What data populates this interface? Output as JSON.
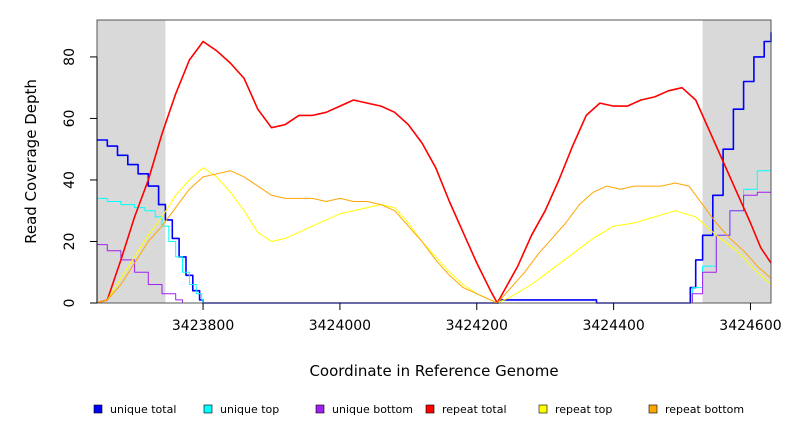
{
  "chart_data": {
    "type": "line",
    "title": "",
    "xlabel": "Coordinate in Reference Genome",
    "ylabel": "Read Coverage Depth",
    "xlim": [
      3423645,
      3424630
    ],
    "ylim": [
      0,
      92
    ],
    "x_ticks": [
      3423800,
      3424000,
      3424200,
      3424400,
      3424600
    ],
    "y_ticks": [
      0,
      20,
      40,
      60,
      80
    ],
    "x_tick_labels": [
      "3423800",
      "3424000",
      "3424200",
      "3424400",
      "3424600"
    ],
    "y_tick_labels": [
      "0",
      "20",
      "40",
      "60",
      "80"
    ],
    "grid": false,
    "legend_position": "bottom",
    "shaded_regions": [
      {
        "x0": 3423645,
        "x1": 3423745,
        "color": "#d9d9d9"
      },
      {
        "x0": 3424530,
        "x1": 3424630,
        "color": "#d9d9d9"
      }
    ],
    "series": [
      {
        "name": "unique total",
        "color": "#0000ff",
        "step": true,
        "width": 1.6,
        "points": [
          [
            3423645,
            53
          ],
          [
            3423660,
            51
          ],
          [
            3423675,
            48
          ],
          [
            3423690,
            45
          ],
          [
            3423705,
            42
          ],
          [
            3423720,
            38
          ],
          [
            3423735,
            32
          ],
          [
            3423745,
            27
          ],
          [
            3423755,
            21
          ],
          [
            3423765,
            15
          ],
          [
            3423775,
            9
          ],
          [
            3423785,
            4
          ],
          [
            3423795,
            1
          ],
          [
            3423800,
            0
          ],
          [
            3424225,
            0
          ],
          [
            3424232,
            1
          ],
          [
            3424370,
            1
          ],
          [
            3424375,
            0
          ],
          [
            3424505,
            0
          ],
          [
            3424512,
            5
          ],
          [
            3424520,
            14
          ],
          [
            3424530,
            22
          ],
          [
            3424545,
            35
          ],
          [
            3424560,
            50
          ],
          [
            3424575,
            63
          ],
          [
            3424590,
            72
          ],
          [
            3424605,
            80
          ],
          [
            3424620,
            85
          ],
          [
            3424630,
            88
          ]
        ]
      },
      {
        "name": "unique top",
        "color": "#00ffff",
        "step": true,
        "width": 1,
        "points": [
          [
            3423645,
            34
          ],
          [
            3423660,
            33
          ],
          [
            3423680,
            32
          ],
          [
            3423700,
            31
          ],
          [
            3423715,
            30
          ],
          [
            3423730,
            28
          ],
          [
            3423740,
            25
          ],
          [
            3423750,
            20
          ],
          [
            3423760,
            15
          ],
          [
            3423770,
            10
          ],
          [
            3423780,
            6
          ],
          [
            3423790,
            3
          ],
          [
            3423798,
            1
          ],
          [
            3423800,
            0
          ],
          [
            3424505,
            0
          ],
          [
            3424515,
            5
          ],
          [
            3424530,
            12
          ],
          [
            3424550,
            22
          ],
          [
            3424570,
            30
          ],
          [
            3424590,
            37
          ],
          [
            3424610,
            43
          ],
          [
            3424630,
            48
          ]
        ]
      },
      {
        "name": "unique bottom",
        "color": "#a020f0",
        "step": true,
        "width": 1,
        "points": [
          [
            3423645,
            19
          ],
          [
            3423660,
            17
          ],
          [
            3423680,
            14
          ],
          [
            3423700,
            10
          ],
          [
            3423720,
            6
          ],
          [
            3423740,
            3
          ],
          [
            3423760,
            1
          ],
          [
            3423770,
            0
          ],
          [
            3424505,
            0
          ],
          [
            3424515,
            3
          ],
          [
            3424530,
            10
          ],
          [
            3424550,
            22
          ],
          [
            3424570,
            30
          ],
          [
            3424590,
            35
          ],
          [
            3424610,
            36
          ],
          [
            3424630,
            37
          ]
        ]
      },
      {
        "name": "repeat total",
        "color": "#ff0000",
        "step": false,
        "width": 1.6,
        "points": [
          [
            3423645,
            0
          ],
          [
            3423660,
            1
          ],
          [
            3423680,
            14
          ],
          [
            3423700,
            28
          ],
          [
            3423720,
            40
          ],
          [
            3423740,
            55
          ],
          [
            3423760,
            68
          ],
          [
            3423780,
            79
          ],
          [
            3423800,
            85
          ],
          [
            3423820,
            82
          ],
          [
            3423840,
            78
          ],
          [
            3423860,
            73
          ],
          [
            3423880,
            63
          ],
          [
            3423900,
            57
          ],
          [
            3423920,
            58
          ],
          [
            3423940,
            61
          ],
          [
            3423960,
            61
          ],
          [
            3423980,
            62
          ],
          [
            3424000,
            64
          ],
          [
            3424020,
            66
          ],
          [
            3424040,
            65
          ],
          [
            3424060,
            64
          ],
          [
            3424080,
            62
          ],
          [
            3424100,
            58
          ],
          [
            3424120,
            52
          ],
          [
            3424140,
            44
          ],
          [
            3424160,
            33
          ],
          [
            3424180,
            23
          ],
          [
            3424200,
            13
          ],
          [
            3424220,
            4
          ],
          [
            3424230,
            0
          ],
          [
            3424240,
            4
          ],
          [
            3424260,
            12
          ],
          [
            3424280,
            22
          ],
          [
            3424300,
            30
          ],
          [
            3424320,
            40
          ],
          [
            3424340,
            51
          ],
          [
            3424360,
            61
          ],
          [
            3424380,
            65
          ],
          [
            3424400,
            64
          ],
          [
            3424420,
            64
          ],
          [
            3424440,
            66
          ],
          [
            3424460,
            67
          ],
          [
            3424480,
            69
          ],
          [
            3424500,
            70
          ],
          [
            3424520,
            66
          ],
          [
            3424540,
            56
          ],
          [
            3424560,
            46
          ],
          [
            3424580,
            36
          ],
          [
            3424600,
            26
          ],
          [
            3424615,
            18
          ],
          [
            3424630,
            13
          ]
        ]
      },
      {
        "name": "repeat top",
        "color": "#ffff00",
        "step": false,
        "width": 1,
        "points": [
          [
            3423645,
            0
          ],
          [
            3423660,
            1
          ],
          [
            3423680,
            8
          ],
          [
            3423700,
            15
          ],
          [
            3423720,
            22
          ],
          [
            3423740,
            28
          ],
          [
            3423760,
            35
          ],
          [
            3423780,
            40
          ],
          [
            3423800,
            44
          ],
          [
            3423820,
            41
          ],
          [
            3423840,
            36
          ],
          [
            3423860,
            30
          ],
          [
            3423880,
            23
          ],
          [
            3423900,
            20
          ],
          [
            3423920,
            21
          ],
          [
            3423940,
            23
          ],
          [
            3423960,
            25
          ],
          [
            3423980,
            27
          ],
          [
            3424000,
            29
          ],
          [
            3424020,
            30
          ],
          [
            3424040,
            31
          ],
          [
            3424060,
            32
          ],
          [
            3424080,
            31
          ],
          [
            3424100,
            26
          ],
          [
            3424120,
            20
          ],
          [
            3424140,
            15
          ],
          [
            3424160,
            10
          ],
          [
            3424180,
            6
          ],
          [
            3424200,
            3
          ],
          [
            3424220,
            1
          ],
          [
            3424230,
            0
          ],
          [
            3424250,
            2
          ],
          [
            3424280,
            6
          ],
          [
            3424310,
            11
          ],
          [
            3424340,
            16
          ],
          [
            3424370,
            21
          ],
          [
            3424400,
            25
          ],
          [
            3424430,
            26
          ],
          [
            3424460,
            28
          ],
          [
            3424490,
            30
          ],
          [
            3424520,
            28
          ],
          [
            3424550,
            22
          ],
          [
            3424580,
            17
          ],
          [
            3424610,
            10
          ],
          [
            3424630,
            6
          ]
        ]
      },
      {
        "name": "repeat bottom",
        "color": "#ffa500",
        "step": false,
        "width": 1,
        "points": [
          [
            3423645,
            0
          ],
          [
            3423660,
            1
          ],
          [
            3423680,
            6
          ],
          [
            3423700,
            13
          ],
          [
            3423720,
            20
          ],
          [
            3423740,
            25
          ],
          [
            3423760,
            31
          ],
          [
            3423780,
            37
          ],
          [
            3423800,
            41
          ],
          [
            3423820,
            42
          ],
          [
            3423840,
            43
          ],
          [
            3423860,
            41
          ],
          [
            3423880,
            38
          ],
          [
            3423900,
            35
          ],
          [
            3423920,
            34
          ],
          [
            3423940,
            34
          ],
          [
            3423960,
            34
          ],
          [
            3423980,
            33
          ],
          [
            3424000,
            34
          ],
          [
            3424020,
            33
          ],
          [
            3424040,
            33
          ],
          [
            3424060,
            32
          ],
          [
            3424080,
            30
          ],
          [
            3424100,
            25
          ],
          [
            3424120,
            20
          ],
          [
            3424140,
            14
          ],
          [
            3424160,
            9
          ],
          [
            3424180,
            5
          ],
          [
            3424200,
            3
          ],
          [
            3424220,
            1
          ],
          [
            3424230,
            0
          ],
          [
            3424250,
            5
          ],
          [
            3424270,
            10
          ],
          [
            3424290,
            16
          ],
          [
            3424310,
            21
          ],
          [
            3424330,
            26
          ],
          [
            3424350,
            32
          ],
          [
            3424370,
            36
          ],
          [
            3424390,
            38
          ],
          [
            3424410,
            37
          ],
          [
            3424430,
            38
          ],
          [
            3424450,
            38
          ],
          [
            3424470,
            38
          ],
          [
            3424490,
            39
          ],
          [
            3424510,
            38
          ],
          [
            3424530,
            32
          ],
          [
            3424550,
            26
          ],
          [
            3424570,
            21
          ],
          [
            3424590,
            17
          ],
          [
            3424610,
            12
          ],
          [
            3424630,
            8
          ]
        ]
      }
    ]
  }
}
